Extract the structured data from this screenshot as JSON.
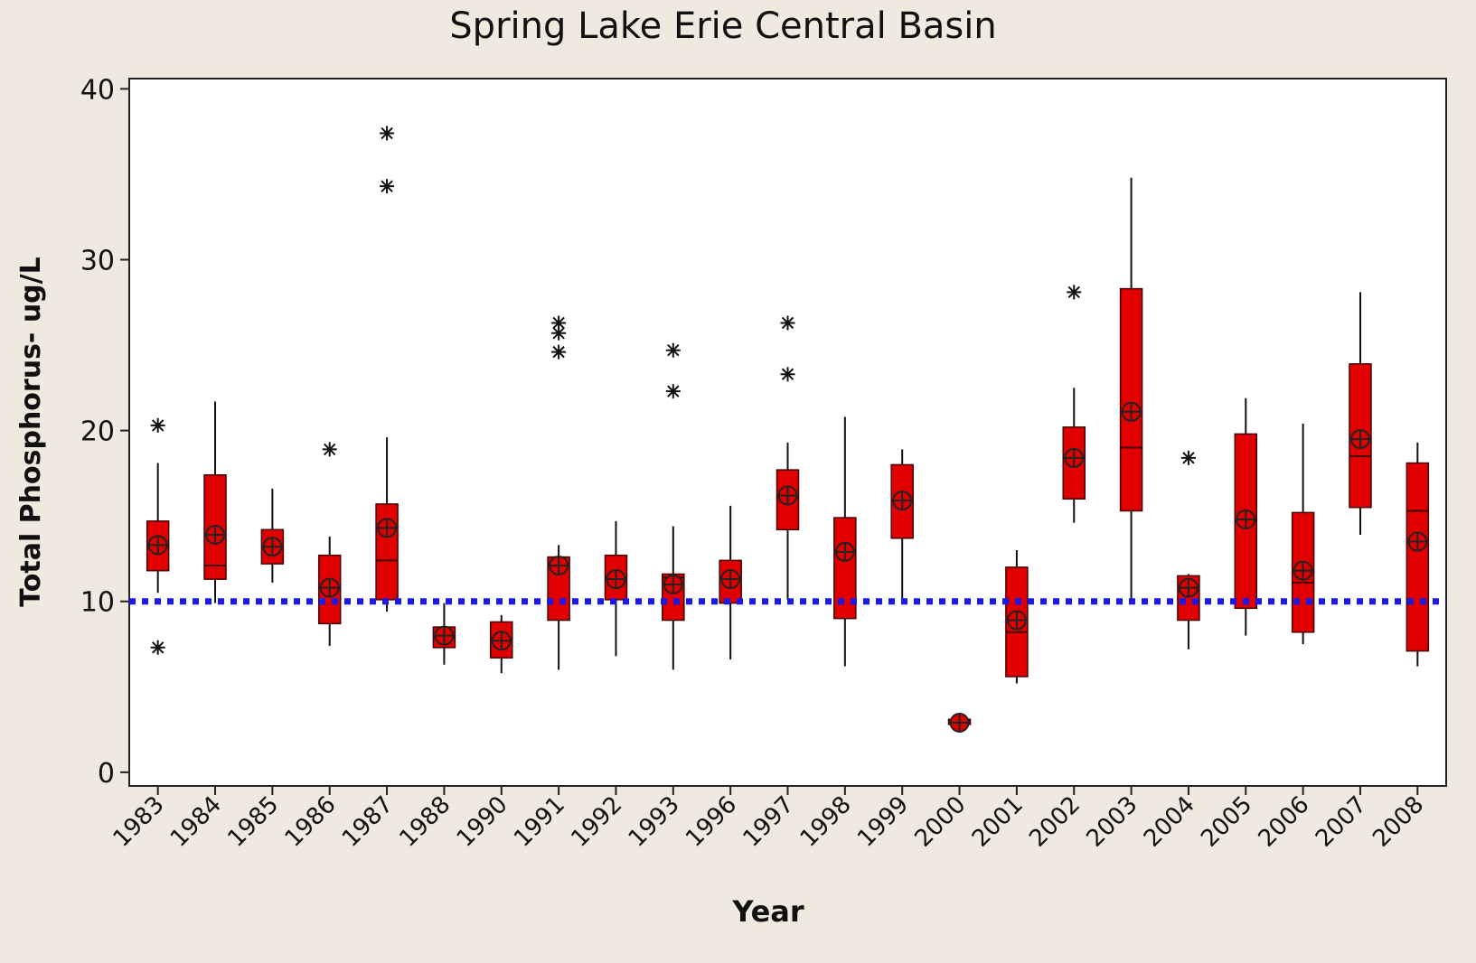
{
  "chart_data": {
    "type": "box",
    "title": "Spring Lake Erie Central Basin",
    "x_label": "Year",
    "y_label": "Total Phosphorus- ug/L",
    "categories": [
      "1983",
      "1984",
      "1985",
      "1986",
      "1987",
      "1988",
      "1990",
      "1991",
      "1992",
      "1993",
      "1996",
      "1997",
      "1998",
      "1999",
      "2000",
      "2001",
      "2002",
      "2003",
      "2004",
      "2005",
      "2006",
      "2007",
      "2008"
    ],
    "whisker_low": [
      10.5,
      9.9,
      11.1,
      7.4,
      9.4,
      6.3,
      5.8,
      6.0,
      6.8,
      6.0,
      6.6,
      10.1,
      6.2,
      10.1,
      2.6,
      5.2,
      14.6,
      9.9,
      7.2,
      8.0,
      7.5,
      13.9,
      6.2
    ],
    "q1": [
      11.8,
      11.3,
      12.2,
      8.7,
      10.1,
      7.3,
      6.7,
      8.9,
      10.1,
      8.9,
      9.9,
      14.2,
      9.0,
      13.7,
      2.8,
      5.6,
      16.0,
      15.3,
      8.9,
      9.6,
      8.2,
      15.5,
      7.1
    ],
    "median": [
      13.3,
      12.1,
      13.2,
      10.8,
      12.4,
      7.9,
      7.8,
      12.2,
      11.4,
      11.4,
      11.4,
      16.1,
      13.0,
      15.9,
      3.0,
      8.2,
      18.4,
      19.0,
      10.6,
      14.7,
      11.1,
      18.5,
      15.3
    ],
    "q3": [
      14.7,
      17.4,
      14.2,
      12.7,
      15.7,
      8.5,
      8.8,
      12.6,
      12.7,
      11.6,
      12.4,
      17.7,
      14.9,
      18.0,
      3.1,
      12.0,
      20.2,
      28.3,
      11.5,
      19.8,
      15.2,
      23.9,
      18.1
    ],
    "whisker_high": [
      18.1,
      21.7,
      16.6,
      13.8,
      19.6,
      9.9,
      9.2,
      13.3,
      14.7,
      14.4,
      15.6,
      19.3,
      20.8,
      18.9,
      3.2,
      13.0,
      22.5,
      34.8,
      11.6,
      21.9,
      20.4,
      28.1,
      19.3
    ],
    "mean": [
      13.3,
      13.9,
      13.2,
      10.8,
      14.3,
      8.0,
      7.7,
      12.1,
      11.3,
      11.0,
      11.3,
      16.2,
      12.9,
      15.9,
      2.9,
      8.9,
      18.4,
      21.1,
      10.8,
      14.8,
      11.8,
      19.5,
      13.5
    ],
    "outliers": [
      [
        20.3,
        7.3
      ],
      [],
      [],
      [
        18.9
      ],
      [
        37.4,
        34.3
      ],
      [],
      [],
      [
        26.3,
        25.7,
        24.6
      ],
      [],
      [
        24.7,
        22.3
      ],
      [],
      [
        26.3,
        23.3
      ],
      [],
      [],
      [],
      [],
      [
        28.1
      ],
      [],
      [
        18.4
      ],
      [],
      [],
      [],
      []
    ],
    "color": "#e00000",
    "reference_line": 10,
    "reference_color": "#1a1ae6",
    "ylim": [
      -0.8,
      40.6
    ],
    "yticks": [
      0,
      10,
      20,
      30,
      40
    ]
  }
}
